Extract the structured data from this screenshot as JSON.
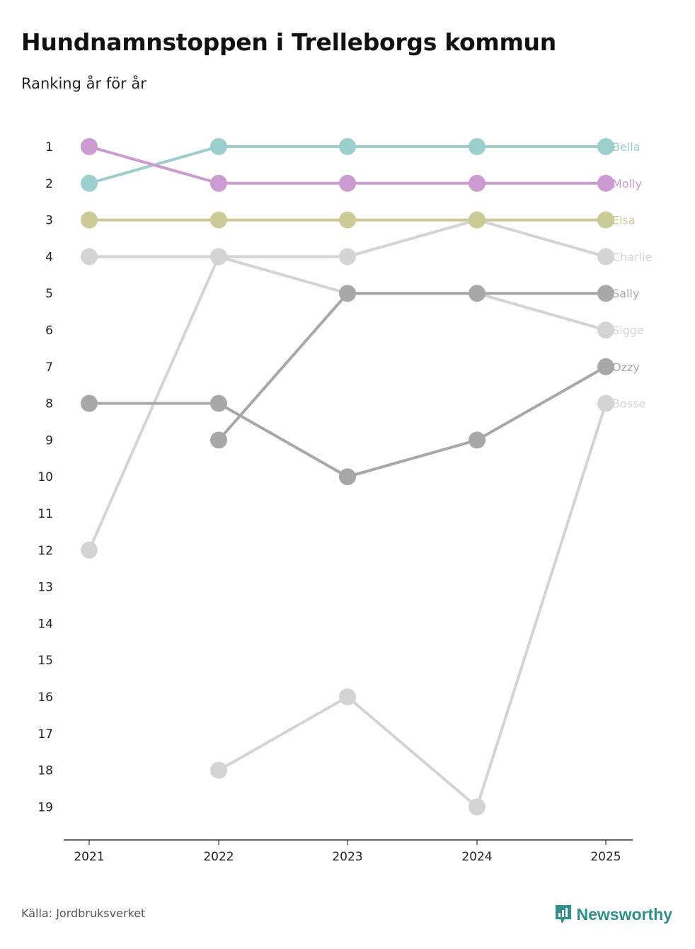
{
  "header": {
    "title": "Hundnamnstoppen i Trelleborgs kommun",
    "subtitle": "Ranking år för år"
  },
  "footer": {
    "source": "Källa: Jordbruksverket",
    "brand": "Newsworthy",
    "brand_icon": "newsworthy-logo-icon",
    "brand_color": "#2f8f8a"
  },
  "chart_data": {
    "type": "line",
    "title": "Hundnamnstoppen i Trelleborgs kommun",
    "subtitle": "Ranking år för år",
    "x": [
      "2021",
      "2022",
      "2023",
      "2024",
      "2025"
    ],
    "y_ticks": [
      "1",
      "2",
      "3",
      "4",
      "5",
      "6",
      "7",
      "8",
      "9",
      "10",
      "11",
      "12",
      "13",
      "14",
      "15",
      "16",
      "17",
      "18",
      "19"
    ],
    "ylim": [
      1,
      19
    ],
    "y_inverted": true,
    "grid": false,
    "series": [
      {
        "name": "Bella",
        "color": "#9bcfcd",
        "values": [
          2,
          1,
          1,
          1,
          1
        ]
      },
      {
        "name": "Molly",
        "color": "#cc9bd1",
        "values": [
          1,
          2,
          2,
          2,
          2
        ]
      },
      {
        "name": "Elsa",
        "color": "#cccb98",
        "values": [
          3,
          3,
          3,
          3,
          3
        ]
      },
      {
        "name": "Charlie",
        "color": "#d4d4d4",
        "values": [
          4,
          4,
          4,
          3,
          4
        ]
      },
      {
        "name": "Sally",
        "color": "#a8a8a8",
        "values": [
          null,
          9,
          5,
          5,
          5
        ]
      },
      {
        "name": "Sigge",
        "color": "#d4d4d4",
        "values": [
          12,
          4,
          5,
          5,
          6
        ]
      },
      {
        "name": "Ozzy",
        "color": "#a8a8a8",
        "values": [
          8,
          8,
          10,
          9,
          7
        ]
      },
      {
        "name": "Bosse",
        "color": "#d4d4d4",
        "values": [
          null,
          18,
          16,
          19,
          8
        ]
      }
    ]
  }
}
